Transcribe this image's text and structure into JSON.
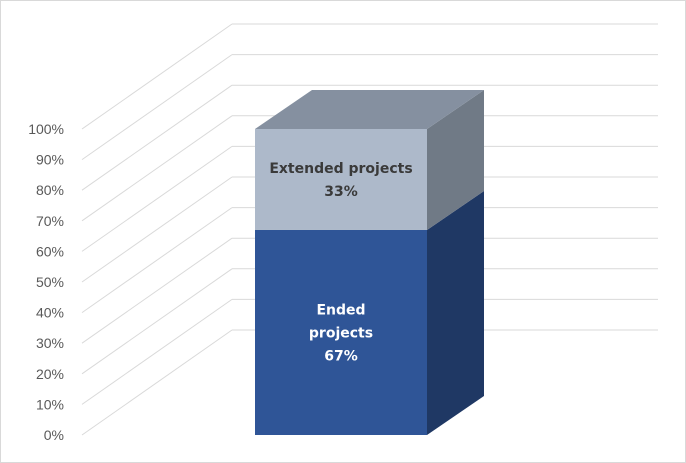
{
  "chart_data": {
    "type": "bar",
    "variant": "3d-stacked-100-percent",
    "categories": [
      ""
    ],
    "series": [
      {
        "name": "Ended projects",
        "values": [
          67
        ],
        "label_lines": [
          "Ended",
          "projects",
          "67%"
        ],
        "color": "#2f5597",
        "side_color": "#1f3864",
        "top_color": "#1f3864",
        "label_color": "#ffffff"
      },
      {
        "name": "Extended projects",
        "values": [
          33
        ],
        "label_lines": [
          "Extended projects",
          "33%"
        ],
        "color": "#adb9ca",
        "side_color": "#707a86",
        "top_color": "#8590a0",
        "label_color": "#3a3a3a"
      }
    ],
    "y_ticks": [
      "0%",
      "10%",
      "20%",
      "30%",
      "40%",
      "50%",
      "60%",
      "70%",
      "80%",
      "90%",
      "100%"
    ],
    "ylim": [
      0,
      100
    ],
    "grid": true,
    "legend": "none",
    "title": "",
    "xlabel": "",
    "ylabel": ""
  }
}
